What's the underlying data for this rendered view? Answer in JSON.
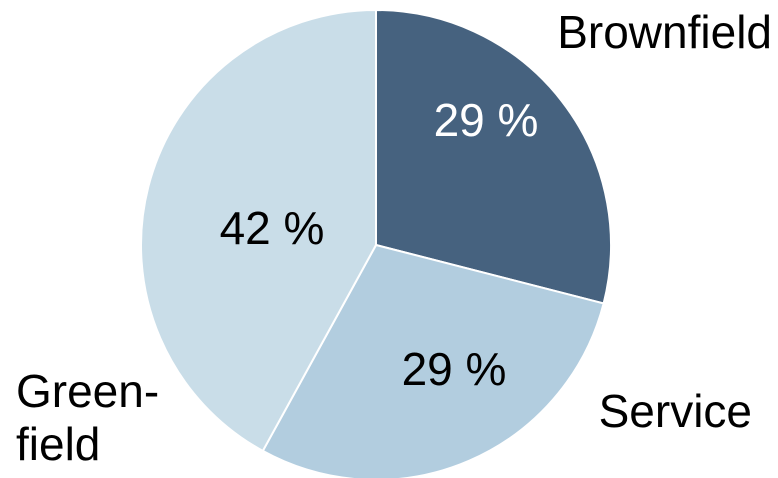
{
  "chart_data": {
    "type": "pie",
    "start_angle_deg": 0,
    "direction": "clockwise",
    "slices": [
      {
        "category_lines": [
          "Brownfield"
        ],
        "value": 29,
        "value_label": "29 %",
        "color": "#46627f",
        "label_color": "#ffffff"
      },
      {
        "category_lines": [
          "Service"
        ],
        "value": 29,
        "value_label": "29 %",
        "color": "#b2cddf",
        "label_color": "#000000"
      },
      {
        "category_lines": [
          "Green-",
          "field"
        ],
        "value": 42,
        "value_label": "42 %",
        "color": "#c9dde8",
        "label_color": "#000000"
      }
    ]
  }
}
